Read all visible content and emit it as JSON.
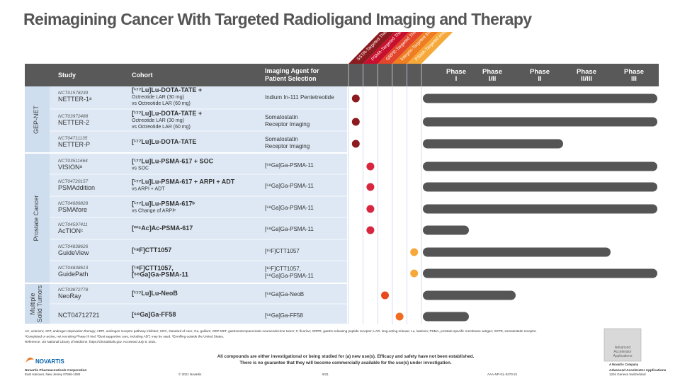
{
  "header": {
    "title": "Reimagining Cancer With Targeted Radioligand Imaging and Therapy"
  },
  "table": {
    "columns": [
      "Study",
      "Cohort",
      "Imaging Agent for Patient Selection"
    ],
    "targets": [
      "SSTR-Targeted Therapy",
      "PSMA-Targeted Therapy",
      "GRPR-Targeted Therapy",
      "Integrin-Targeted Imaging",
      "PSMA-Targeted Imaging"
    ],
    "phases": [
      [
        "Phase",
        "I"
      ],
      [
        "Phase",
        "I/II"
      ],
      [
        "Phase",
        "II"
      ],
      [
        "Phase",
        "II/III"
      ],
      [
        "Phase",
        "III"
      ]
    ],
    "groups": [
      [
        "GEP-NET"
      ],
      [
        "Prostate Cancer"
      ],
      [
        "Multiple",
        "Solid Tumors"
      ]
    ],
    "rows": [
      {
        "nct": "NCT01578239",
        "study": "NETTER-1ᵃ",
        "cohort": [
          "[¹⁷⁷Lu]Lu-DOTA-TATE +",
          "Octreotide LAR (30 mg)",
          "vs Octreotide LAR (60 mg)"
        ],
        "agent": [
          "Indium In-111 Pentetreotide"
        ]
      },
      {
        "nct": "NCT03972488",
        "study": "NETTER-2",
        "cohort": [
          "[¹⁷⁷Lu]Lu-DOTA-TATE +",
          "Octreotide LAR (30 mg)",
          "vs Octreotide LAR (60 mg)"
        ],
        "agent": [
          "Somatostatin",
          "Receptor Imaging"
        ]
      },
      {
        "nct": "NCT04711135",
        "study": "NETTER-P",
        "cohort": [
          "[¹⁷⁷Lu]Lu-DOTA-TATE"
        ],
        "agent": [
          "Somatostatin",
          "Receptor Imaging"
        ]
      },
      {
        "nct": "NCT03511664",
        "study": "VISIONᵃ",
        "cohort": [
          "[¹⁷⁷Lu]Lu-PSMA-617 + SOC",
          "vs SOC"
        ],
        "agent": [
          "[⁶⁸Ga]Ga-PSMA-11"
        ]
      },
      {
        "nct": "NCT04720157",
        "study": "PSMAddition",
        "cohort": [
          "[¹⁷⁷Lu]Lu-PSMA-617 + ARPI + ADT",
          "vs ARPI + ADT"
        ],
        "agent": [
          "[⁶⁸Ga]Ga-PSMA-11"
        ]
      },
      {
        "nct": "NCT04689828",
        "study": "PSMAfore",
        "cohort": [
          "[¹⁷⁷Lu]Lu-PSMA-617ᵇ",
          "vs Change of ARPIᵇ"
        ],
        "agent": [
          "[⁶⁸Ga]Ga-PSMA-11"
        ]
      },
      {
        "nct": "NCT04597411",
        "study": "AcTIONᶜ",
        "cohort": [
          "[²²⁵Ac]Ac-PSMA-617"
        ],
        "agent": [
          "[⁶⁸Ga]Ga-PSMA-11"
        ]
      },
      {
        "nct": "NCT04838626",
        "study": "GuideView",
        "cohort": [
          "[¹⁸F]CTT1057"
        ],
        "agent": [
          "[¹⁸F]CTT1057"
        ]
      },
      {
        "nct": "NCT04838613",
        "study": "GuidePath",
        "cohort": [
          "[¹⁸F]CTT1057,",
          "[⁶⁸Ga]Ga-PSMA-11"
        ],
        "agent": [
          "[¹⁸F]CTT1057,",
          "[⁶⁸Ga]Ga-PSMA-11"
        ]
      },
      {
        "nct": "NCT03872778",
        "study": "NeoRay",
        "cohort": [
          "[¹⁷⁷Lu]Lu-NeoB"
        ],
        "agent": [
          "[⁶⁸Ga]Ga-NeoB"
        ]
      },
      {
        "study": "NCT04712721",
        "cohort": [
          "[⁶⁸Ga]Ga-FF58"
        ],
        "agent": [
          "[⁶⁸Ga]Ga-FF58"
        ]
      }
    ]
  },
  "footnotes": [
    "AC, actinium; ADT, androgen deprivation therapy; ARPI, androgen receptor pathway inhibitor; SOC, standard of care; Ga, gallium; GEP-NET, gastroenteropancreatic neuroendocrine tumor; F, fluorine; GRPR, gastrin-releasing peptide receptor; LAR, long-acting release; Lu, lutetium; PSMA, prostate-specific membrane antigen; SSTR, somatostatin receptor.",
    "ᵃCompleted or active, not recruiting Phase III trial. ᵇBest supportive care, including ADT, may be used. ᶜEnrolling outside the United States.",
    "Reference: US National Library of Medicine. https://clinicaltrials.gov. Accessed July 8, 2021."
  ],
  "footer": {
    "disclaimer": [
      "All compounds are either investigational or being studied for (a) new use(s). Efficacy and safety have not been established.",
      "There is no guarantee that they will become commercially available for the use(s) under investigation."
    ],
    "company": "NOVARTIS",
    "company_name": "Novartis Pharmaceuticals Corporation",
    "company_address": "East Hanover, New Jersey 07936-1080",
    "copyright": "© 2021 Novartis",
    "date": "9/21",
    "code": "AAA-NP-GL-0273-21",
    "partner_logo": [
      "Advanced",
      "Accelerator",
      "Applications"
    ],
    "partner_tagline": "A Novartis Company",
    "partner_name": "Advanced Accelerator Applications",
    "partner_address": "1204 Geneva Switzerland"
  }
}
